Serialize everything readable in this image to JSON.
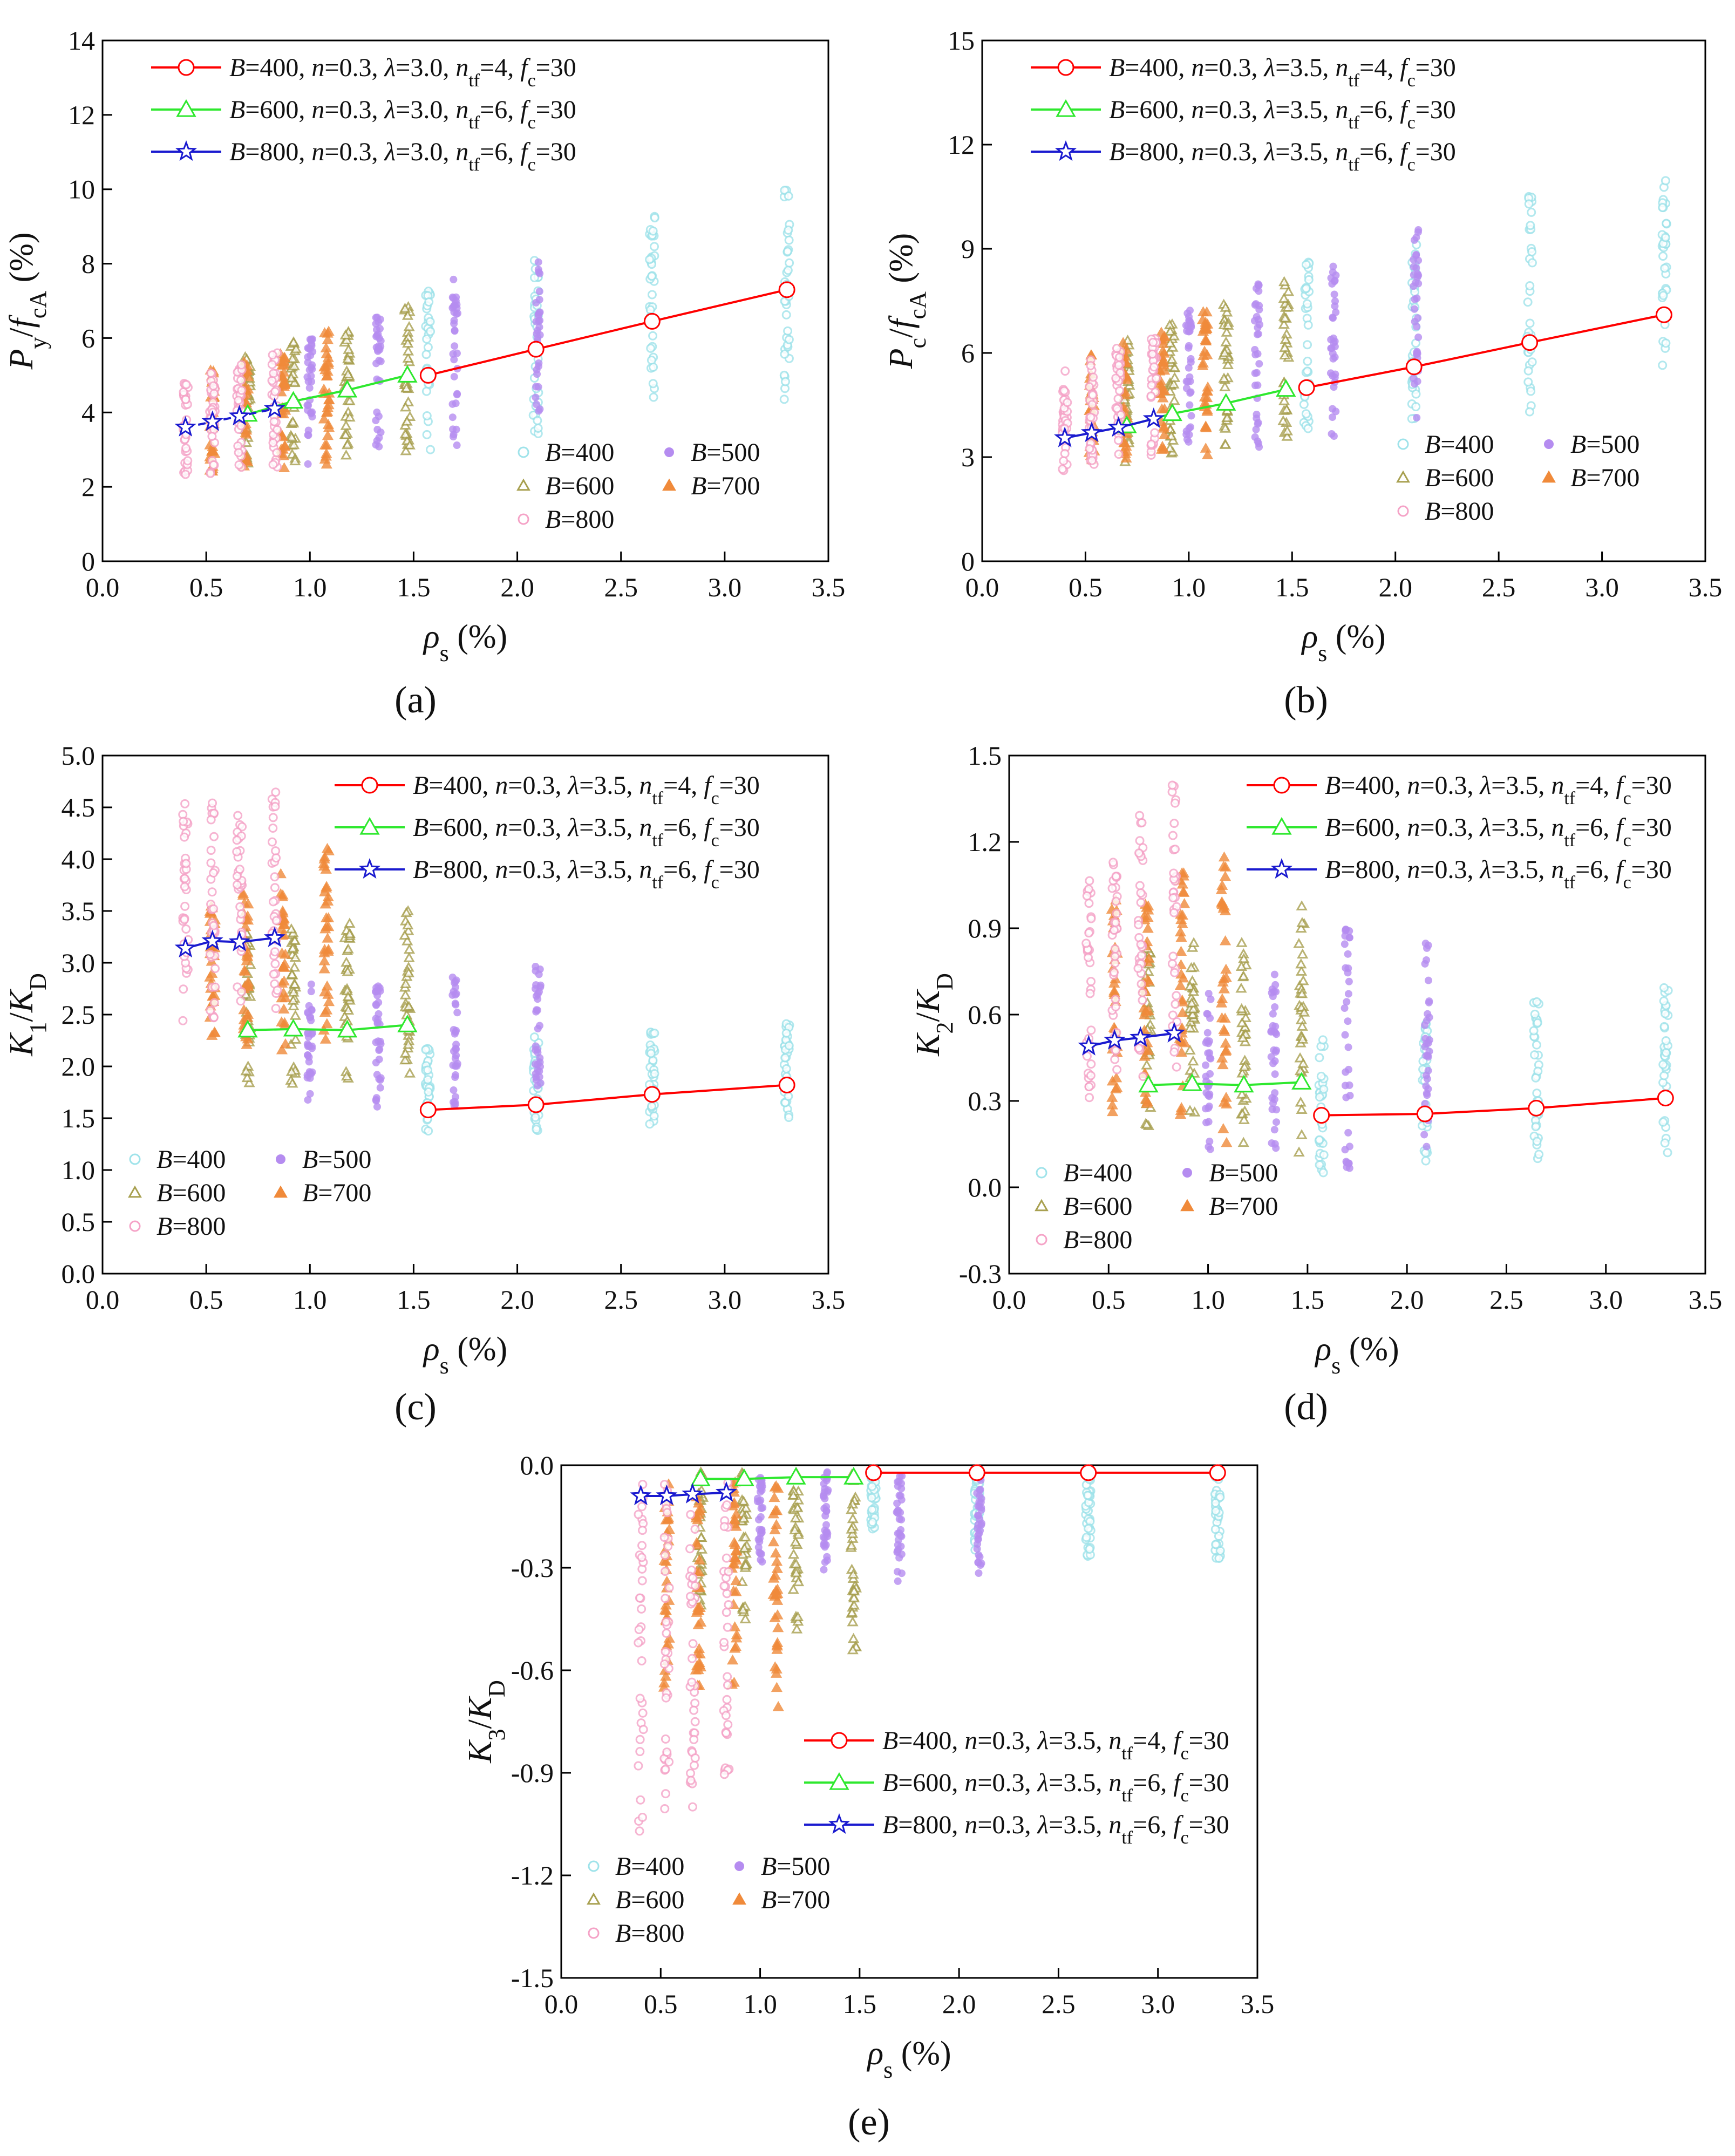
{
  "figure": {
    "panel_tags": [
      "(a)",
      "(b)",
      "(c)",
      "(d)",
      "(e)"
    ],
    "scatter_legend": [
      "B=400",
      "B=500",
      "B=600",
      "B=700",
      "B=800"
    ]
  },
  "colors": {
    "B400": "#ff0000",
    "B600": "#2ee82e",
    "B800": "#1a1acf",
    "scatter400": "#9fe3ea",
    "scatter500": "#b58cf0",
    "scatter600": "#a8a050",
    "scatter700": "#f08a3a",
    "scatter800": "#f5a3c7"
  },
  "chart_data": [
    {
      "panel": "a",
      "type": "scatter",
      "ylabel": "P_y/f_cA (%)",
      "xlabel": "ρ_s (%)",
      "ylim": [
        0,
        14
      ],
      "yticks": [
        0,
        2,
        4,
        6,
        8,
        10,
        12,
        14
      ],
      "xlim": [
        0,
        3.5
      ],
      "xticks": [
        0.0,
        0.5,
        1.0,
        1.5,
        2.0,
        2.5,
        3.0,
        3.5
      ],
      "series": [
        {
          "name": "B=400, n=0.3, λ=3.0, n_tf=4, f_c=30",
          "x": [
            1.57,
            2.09,
            2.65,
            3.3
          ],
          "values": [
            5.0,
            5.7,
            6.45,
            7.3
          ]
        },
        {
          "name": "B=600, n=0.3, λ=3.0, n_tf=6, f_c=30",
          "x": [
            0.7,
            0.92,
            1.18,
            1.47
          ],
          "values": [
            3.95,
            4.3,
            4.6,
            5.0
          ]
        },
        {
          "name": "B=800, n=0.3, λ=3.0, n_tf=6, f_c=30",
          "x": [
            0.4,
            0.53,
            0.66,
            0.83
          ],
          "values": [
            3.6,
            3.75,
            3.9,
            4.1
          ]
        }
      ],
      "scatter_ranges": [
        {
          "group": "B=400",
          "x": [
            1.57,
            2.09,
            2.65,
            3.3
          ],
          "lo": [
            3.0,
            3.4,
            3.8,
            4.3
          ],
          "hi": [
            7.5,
            8.1,
            9.3,
            10.0
          ]
        },
        {
          "group": "B=500",
          "x": [
            1.0,
            1.33,
            1.7,
            2.1
          ],
          "lo": [
            2.6,
            2.8,
            3.1,
            3.4
          ],
          "hi": [
            6.1,
            6.7,
            7.6,
            8.3
          ]
        },
        {
          "group": "B=600",
          "x": [
            0.7,
            0.92,
            1.18,
            1.47
          ],
          "lo": [
            2.4,
            2.6,
            2.8,
            2.9
          ],
          "hi": [
            5.5,
            5.9,
            6.4,
            7.0
          ]
        },
        {
          "group": "B=700",
          "x": [
            0.53,
            0.69,
            0.87,
            1.08
          ],
          "lo": [
            2.4,
            2.5,
            2.5,
            2.6
          ],
          "hi": [
            5.2,
            5.4,
            5.7,
            6.3
          ]
        },
        {
          "group": "B=800",
          "x": [
            0.4,
            0.53,
            0.66,
            0.83
          ],
          "lo": [
            2.2,
            2.3,
            2.4,
            2.5
          ],
          "hi": [
            4.8,
            5.1,
            5.4,
            5.6
          ]
        }
      ]
    },
    {
      "panel": "b",
      "type": "scatter",
      "ylabel": "P_c/f_cA (%)",
      "xlabel": "ρ_s (%)",
      "ylim": [
        0,
        15
      ],
      "yticks": [
        0,
        3,
        6,
        9,
        12,
        15
      ],
      "xlim": [
        0,
        3.5
      ],
      "xticks": [
        0.0,
        0.5,
        1.0,
        1.5,
        2.0,
        2.5,
        3.0,
        3.5
      ],
      "series": [
        {
          "name": "B=400, n=0.3, λ=3.5, n_tf=4, f_c=30",
          "x": [
            1.57,
            2.09,
            2.65,
            3.3
          ],
          "values": [
            5.0,
            5.6,
            6.3,
            7.1
          ]
        },
        {
          "name": "B=600, n=0.3, λ=3.5, n_tf=6, f_c=30",
          "x": [
            0.7,
            0.92,
            1.18,
            1.47
          ],
          "values": [
            3.9,
            4.25,
            4.55,
            4.95
          ]
        },
        {
          "name": "B=800, n=0.3, λ=3.5, n_tf=6, f_c=30",
          "x": [
            0.4,
            0.53,
            0.66,
            0.83
          ],
          "values": [
            3.55,
            3.7,
            3.85,
            4.1
          ]
        }
      ],
      "scatter_ranges": [
        {
          "group": "B=400",
          "x": [
            1.57,
            2.09,
            2.65,
            3.3
          ],
          "lo": [
            3.4,
            3.8,
            4.3,
            4.8
          ],
          "hi": [
            8.7,
            9.3,
            10.6,
            11.4
          ]
        },
        {
          "group": "B=500",
          "x": [
            1.0,
            1.33,
            1.7,
            2.1
          ],
          "lo": [
            3.0,
            3.2,
            3.6,
            4.0
          ],
          "hi": [
            7.3,
            8.0,
            8.8,
            9.6
          ]
        },
        {
          "group": "B=600",
          "x": [
            0.7,
            0.92,
            1.18,
            1.47
          ],
          "lo": [
            2.8,
            3.0,
            3.2,
            3.4
          ],
          "hi": [
            6.4,
            6.9,
            7.5,
            8.1
          ]
        },
        {
          "group": "B=700",
          "x": [
            0.53,
            0.69,
            0.87,
            1.08
          ],
          "lo": [
            2.8,
            2.9,
            3.0,
            3.0
          ],
          "hi": [
            6.0,
            6.3,
            6.7,
            7.2
          ]
        },
        {
          "group": "B=800",
          "x": [
            0.4,
            0.53,
            0.66,
            0.83
          ],
          "lo": [
            2.6,
            2.7,
            2.8,
            2.9
          ],
          "hi": [
            5.5,
            5.8,
            6.2,
            6.5
          ]
        }
      ]
    },
    {
      "panel": "c",
      "type": "scatter",
      "ylabel": "K_1/K_D",
      "xlabel": "ρ_s (%)",
      "ylim": [
        0,
        5
      ],
      "yticks": [
        0.0,
        0.5,
        1.0,
        1.5,
        2.0,
        2.5,
        3.0,
        3.5,
        4.0,
        4.5,
        5.0
      ],
      "xlim": [
        0,
        3.5
      ],
      "xticks": [
        0.0,
        0.5,
        1.0,
        1.5,
        2.0,
        2.5,
        3.0,
        3.5
      ],
      "series": [
        {
          "name": "B=400, n=0.3, λ=3.5, n_tf=4, f_c=30",
          "x": [
            1.57,
            2.09,
            2.65,
            3.3
          ],
          "values": [
            1.58,
            1.63,
            1.73,
            1.82
          ]
        },
        {
          "name": "B=600, n=0.3, λ=3.5, n_tf=6, f_c=30",
          "x": [
            0.7,
            0.92,
            1.18,
            1.47
          ],
          "values": [
            2.35,
            2.36,
            2.35,
            2.4
          ]
        },
        {
          "name": "B=800, n=0.3, λ=3.5, n_tf=6, f_c=30",
          "x": [
            0.4,
            0.53,
            0.66,
            0.83
          ],
          "values": [
            3.14,
            3.21,
            3.2,
            3.24
          ]
        }
      ],
      "scatter_ranges": [
        {
          "group": "B=400",
          "x": [
            1.57,
            2.09,
            2.65,
            3.3
          ],
          "lo": [
            1.25,
            1.35,
            1.4,
            1.5
          ],
          "hi": [
            2.2,
            2.3,
            2.35,
            2.45
          ]
        },
        {
          "group": "B=500",
          "x": [
            1.0,
            1.33,
            1.7,
            2.1
          ],
          "lo": [
            1.5,
            1.55,
            1.6,
            1.7
          ],
          "hi": [
            2.8,
            2.85,
            2.9,
            3.0
          ]
        },
        {
          "group": "B=600",
          "x": [
            0.7,
            0.92,
            1.18,
            1.47
          ],
          "lo": [
            1.8,
            1.8,
            1.85,
            1.9
          ],
          "hi": [
            3.3,
            3.35,
            3.4,
            3.5
          ]
        },
        {
          "group": "B=700",
          "x": [
            0.53,
            0.69,
            0.87,
            1.08
          ],
          "lo": [
            2.1,
            2.1,
            2.15,
            2.2
          ],
          "hi": [
            3.6,
            3.7,
            4.0,
            4.1
          ]
        },
        {
          "group": "B=800",
          "x": [
            0.4,
            0.53,
            0.66,
            0.83
          ],
          "lo": [
            2.4,
            2.45,
            2.5,
            2.55
          ],
          "hi": [
            4.55,
            4.55,
            4.6,
            4.65
          ]
        }
      ]
    },
    {
      "panel": "d",
      "type": "scatter",
      "ylabel": "K_2/K_D",
      "xlabel": "ρ_s (%)",
      "ylim": [
        -0.3,
        1.5
      ],
      "yticks": [
        -0.3,
        0.0,
        0.3,
        0.6,
        0.9,
        1.2,
        1.5
      ],
      "xlim": [
        0,
        3.5
      ],
      "xticks": [
        0.0,
        0.5,
        1.0,
        1.5,
        2.0,
        2.5,
        3.0,
        3.5
      ],
      "series": [
        {
          "name": "B=400, n=0.3, λ=3.5, n_tf=4, f_c=30",
          "x": [
            1.57,
            2.09,
            2.65,
            3.3
          ],
          "values": [
            0.25,
            0.255,
            0.275,
            0.31
          ]
        },
        {
          "name": "B=600, n=0.3, λ=3.5, n_tf=6, f_c=30",
          "x": [
            0.7,
            0.92,
            1.18,
            1.47
          ],
          "values": [
            0.355,
            0.36,
            0.355,
            0.365
          ]
        },
        {
          "name": "B=800, n=0.3, λ=3.5, n_tf=6, f_c=30",
          "x": [
            0.4,
            0.53,
            0.66,
            0.83
          ],
          "values": [
            0.49,
            0.51,
            0.52,
            0.535
          ]
        }
      ],
      "scatter_ranges": [
        {
          "group": "B=400",
          "x": [
            1.57,
            2.09,
            2.65,
            3.3
          ],
          "lo": [
            0.05,
            0.08,
            0.09,
            0.1
          ],
          "hi": [
            0.55,
            0.6,
            0.65,
            0.7
          ]
        },
        {
          "group": "B=500",
          "x": [
            1.0,
            1.33,
            1.7,
            2.1
          ],
          "lo": [
            0.1,
            0.08,
            0.04,
            0.1
          ],
          "hi": [
            0.7,
            0.78,
            0.9,
            0.86
          ]
        },
        {
          "group": "B=600",
          "x": [
            0.7,
            0.92,
            1.18,
            1.47
          ],
          "lo": [
            0.2,
            0.2,
            0.15,
            0.1
          ],
          "hi": [
            0.85,
            0.88,
            0.9,
            0.98
          ]
        },
        {
          "group": "B=700",
          "x": [
            0.53,
            0.69,
            0.87,
            1.08
          ],
          "lo": [
            0.25,
            0.25,
            0.2,
            0.1
          ],
          "hi": [
            1.0,
            1.05,
            1.1,
            1.2
          ]
        },
        {
          "group": "B=800",
          "x": [
            0.4,
            0.53,
            0.66,
            0.83
          ],
          "lo": [
            0.25,
            0.28,
            0.3,
            0.32
          ],
          "hi": [
            1.07,
            1.16,
            1.3,
            1.41
          ]
        }
      ]
    },
    {
      "panel": "e",
      "type": "scatter",
      "ylabel": "K_3/K_D",
      "xlabel": "ρ_s (%)",
      "ylim": [
        -1.5,
        0.0
      ],
      "yticks": [
        -1.5,
        -1.2,
        -0.9,
        -0.6,
        -0.3,
        0.0
      ],
      "xlim": [
        0,
        3.5
      ],
      "xticks": [
        0.0,
        0.5,
        1.0,
        1.5,
        2.0,
        2.5,
        3.0,
        3.5
      ],
      "series": [
        {
          "name": "B=400, n=0.3, λ=3.5, n_tf=4, f_c=30",
          "x": [
            1.57,
            2.09,
            2.65,
            3.3
          ],
          "values": [
            -0.022,
            -0.022,
            -0.022,
            -0.022
          ]
        },
        {
          "name": "B=600, n=0.3, λ=3.5, n_tf=6, f_c=30",
          "x": [
            0.7,
            0.92,
            1.18,
            1.47
          ],
          "values": [
            -0.04,
            -0.04,
            -0.035,
            -0.035
          ]
        },
        {
          "name": "B=800, n=0.3, λ=3.5, n_tf=6, f_c=30",
          "x": [
            0.4,
            0.53,
            0.66,
            0.83
          ],
          "values": [
            -0.09,
            -0.09,
            -0.085,
            -0.08
          ]
        }
      ],
      "scatter_ranges": [
        {
          "group": "B=400",
          "x": [
            1.57,
            2.09,
            2.65,
            3.3
          ],
          "lo": [
            -0.2,
            -0.25,
            -0.27,
            -0.3
          ],
          "hi": [
            -0.02,
            -0.02,
            -0.02,
            -0.02
          ]
        },
        {
          "group": "B=500",
          "x": [
            1.0,
            1.33,
            1.7,
            2.1
          ],
          "lo": [
            -0.3,
            -0.32,
            -0.35,
            -0.32
          ],
          "hi": [
            -0.02,
            -0.02,
            -0.02,
            -0.02
          ]
        },
        {
          "group": "B=600",
          "x": [
            0.7,
            0.92,
            1.18,
            1.47
          ],
          "lo": [
            -0.45,
            -0.47,
            -0.5,
            -0.55
          ],
          "hi": [
            -0.02,
            -0.02,
            -0.02,
            -0.02
          ]
        },
        {
          "group": "B=700",
          "x": [
            0.53,
            0.69,
            0.87,
            1.08
          ],
          "lo": [
            -0.68,
            -0.68,
            -0.65,
            -0.72
          ],
          "hi": [
            -0.03,
            -0.03,
            -0.03,
            -0.03
          ]
        },
        {
          "group": "B=800",
          "x": [
            0.4,
            0.53,
            0.66,
            0.83
          ],
          "lo": [
            -1.08,
            -1.04,
            -1.05,
            -0.99
          ],
          "hi": [
            -0.05,
            -0.05,
            -0.05,
            -0.05
          ]
        }
      ]
    }
  ]
}
